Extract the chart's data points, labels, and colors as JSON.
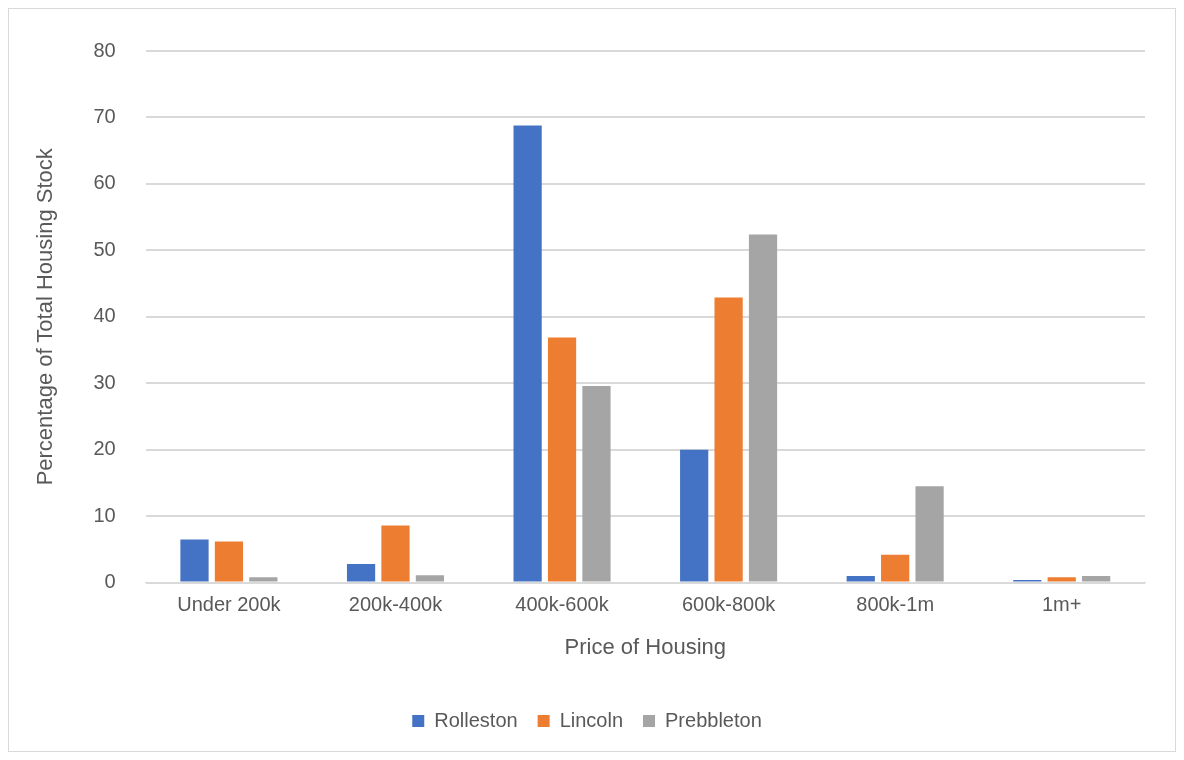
{
  "chart_data": {
    "type": "bar",
    "xlabel": "Price of Housing",
    "ylabel": "Percentage of Total Housing Stock",
    "categories": [
      "Under 200k",
      "200k-400k",
      "400k-600k",
      "600k-800k",
      "800k-1m",
      "1m+"
    ],
    "series": [
      {
        "name": "Rolleston",
        "color": "#4472c4",
        "values": [
          6.5,
          2.8,
          68.8,
          20,
          1,
          0.4
        ]
      },
      {
        "name": "Lincoln",
        "color": "#ed7d31",
        "values": [
          6.2,
          8.6,
          36.9,
          42.9,
          4.2,
          0.8
        ]
      },
      {
        "name": "Prebbleton",
        "color": "#a5a5a5",
        "values": [
          0.8,
          1.1,
          29.6,
          52.4,
          14.5,
          1
        ]
      }
    ],
    "ylim": [
      0,
      80
    ],
    "yticks": [
      0,
      10,
      20,
      30,
      40,
      50,
      60,
      70,
      80
    ],
    "grid": "y",
    "legend": "bottom"
  }
}
